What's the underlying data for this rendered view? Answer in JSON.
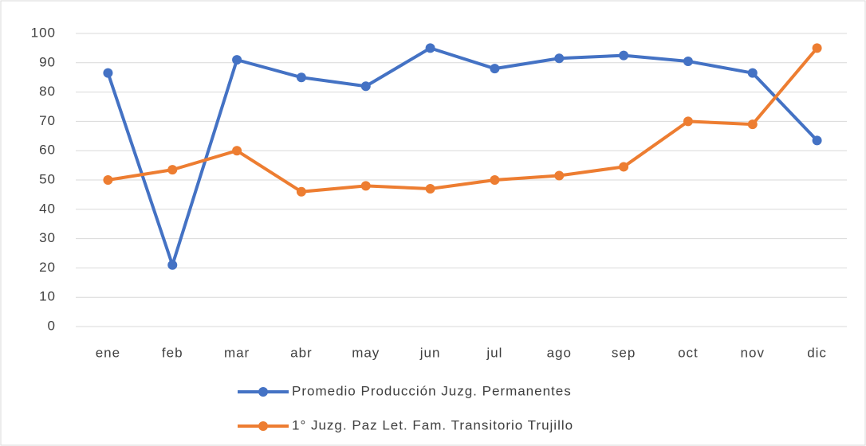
{
  "chart_data": {
    "type": "line",
    "categories": [
      "ene",
      "feb",
      "mar",
      "abr",
      "may",
      "jun",
      "jul",
      "ago",
      "sep",
      "oct",
      "nov",
      "dic"
    ],
    "series": [
      {
        "name": "Promedio Producción Juzg. Permanentes",
        "color": "#4472c4",
        "values": [
          86.5,
          21,
          91,
          85,
          82,
          95,
          88,
          91.5,
          92.5,
          90.5,
          86.5,
          63.5
        ]
      },
      {
        "name": "1° Juzg. Paz Let. Fam. Transitorio Trujillo",
        "color": "#ed7d31",
        "values": [
          50,
          53.5,
          60,
          46,
          48,
          47,
          50,
          51.5,
          54.5,
          70,
          69,
          95
        ]
      }
    ],
    "ylim": [
      0,
      100
    ],
    "yticks": [
      0,
      10,
      20,
      30,
      40,
      50,
      60,
      70,
      80,
      90,
      100
    ],
    "grid": true,
    "legend": "bottom"
  }
}
